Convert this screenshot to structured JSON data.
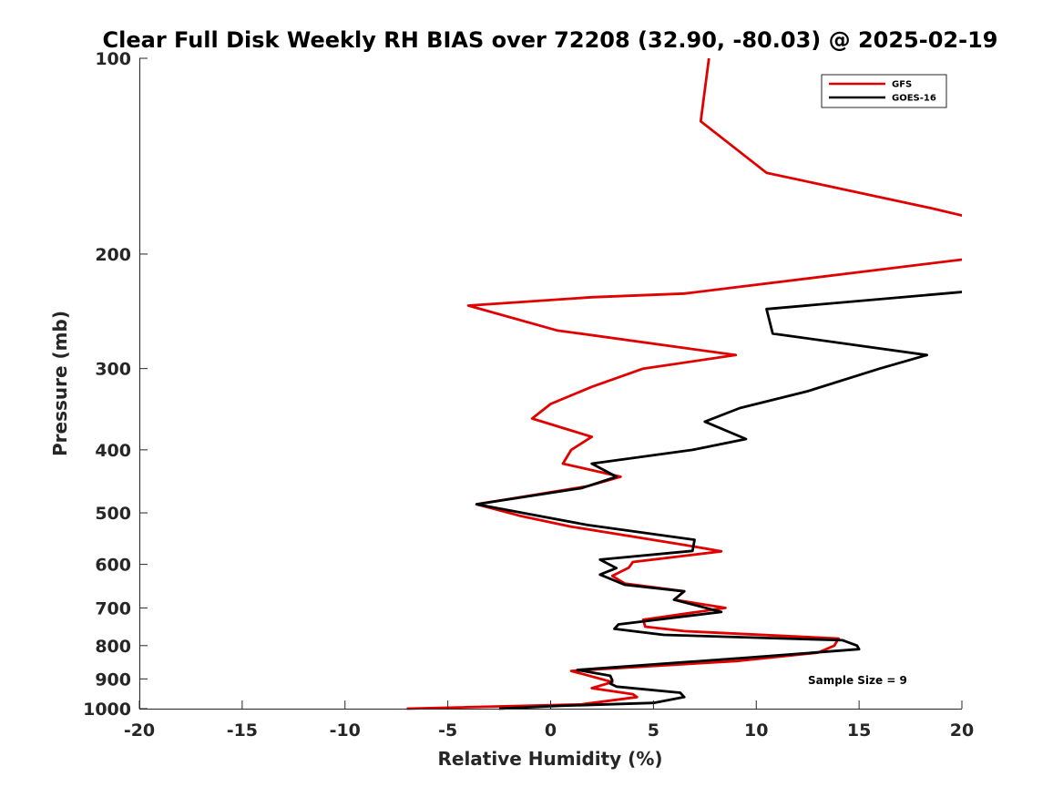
{
  "chart_data": {
    "type": "line",
    "title": "Clear Full Disk Weekly RH BIAS over 72208 (32.90, -80.03) @ 2025-02-19",
    "xlabel": "Relative Humidity (%)",
    "ylabel": "Pressure (mb)",
    "xlim": [
      -20,
      20
    ],
    "ylim": [
      100,
      1000
    ],
    "y_scale": "log",
    "y_reversed": true,
    "grid": false,
    "legend_position": "top-right",
    "x_ticks": [
      "-20",
      "-15",
      "-10",
      "-5",
      "0",
      "5",
      "10",
      "15",
      "20"
    ],
    "x_tick_values": [
      -20,
      -15,
      -10,
      -5,
      0,
      5,
      10,
      15,
      20
    ],
    "y_ticks": [
      "100",
      "200",
      "300",
      "400",
      "500",
      "600",
      "700",
      "800",
      "900",
      "1000"
    ],
    "y_tick_values": [
      100,
      200,
      300,
      400,
      500,
      600,
      700,
      800,
      900,
      1000
    ],
    "annotation": "Sample Size = 9",
    "series": [
      {
        "name": "GFS",
        "color": "#e00000",
        "points": [
          [
            7.7,
            100
          ],
          [
            7.3,
            125
          ],
          [
            10.5,
            150
          ],
          [
            18.5,
            170
          ],
          [
            20.5,
            176
          ],
          [
            20.5,
            203
          ],
          [
            6.5,
            230
          ],
          [
            2.0,
            233
          ],
          [
            -4.0,
            240
          ],
          [
            0.3,
            262
          ],
          [
            9.0,
            286
          ],
          [
            4.5,
            300
          ],
          [
            2.0,
            320
          ],
          [
            0,
            340
          ],
          [
            -0.9,
            358
          ],
          [
            2.0,
            382
          ],
          [
            1.0,
            400
          ],
          [
            0.6,
            420
          ],
          [
            3.4,
            440
          ],
          [
            1.8,
            455
          ],
          [
            -3.6,
            485
          ],
          [
            -1.5,
            505
          ],
          [
            1.0,
            525
          ],
          [
            6.5,
            560
          ],
          [
            8.3,
            573
          ],
          [
            4.0,
            595
          ],
          [
            3.8,
            607
          ],
          [
            3.0,
            625
          ],
          [
            3.6,
            642
          ],
          [
            6.5,
            660
          ],
          [
            6.0,
            680
          ],
          [
            8.5,
            700
          ],
          [
            4.5,
            730
          ],
          [
            4.6,
            748
          ],
          [
            6.5,
            760
          ],
          [
            14.0,
            780
          ],
          [
            13.8,
            800
          ],
          [
            13.0,
            820
          ],
          [
            9.0,
            845
          ],
          [
            1.0,
            875
          ],
          [
            3.0,
            910
          ],
          [
            2.0,
            930
          ],
          [
            4.0,
            950
          ],
          [
            4.2,
            960
          ],
          [
            1.5,
            985
          ],
          [
            -7.0,
            1000
          ]
        ]
      },
      {
        "name": "GOES-16",
        "color": "#000000",
        "points": [
          [
            20.5,
            228
          ],
          [
            10.5,
            243
          ],
          [
            10.8,
            265
          ],
          [
            18.3,
            286
          ],
          [
            16.0,
            300
          ],
          [
            12.5,
            325
          ],
          [
            9.2,
            345
          ],
          [
            7.5,
            362
          ],
          [
            9.5,
            385
          ],
          [
            6.9,
            400
          ],
          [
            2.0,
            420
          ],
          [
            3.2,
            440
          ],
          [
            1.5,
            458
          ],
          [
            -3.6,
            485
          ],
          [
            1.8,
            522
          ],
          [
            7.0,
            550
          ],
          [
            6.9,
            572
          ],
          [
            2.4,
            590
          ],
          [
            3.2,
            608
          ],
          [
            2.4,
            622
          ],
          [
            3.6,
            645
          ],
          [
            6.5,
            660
          ],
          [
            6.0,
            680
          ],
          [
            8.3,
            710
          ],
          [
            3.3,
            742
          ],
          [
            3.1,
            754
          ],
          [
            5.5,
            770
          ],
          [
            14.2,
            785
          ],
          [
            14.9,
            800
          ],
          [
            15.0,
            810
          ],
          [
            9.5,
            835
          ],
          [
            1.3,
            872
          ],
          [
            2.9,
            890
          ],
          [
            3.0,
            905
          ],
          [
            2.9,
            915
          ],
          [
            3.2,
            925
          ],
          [
            6.3,
            945
          ],
          [
            6.5,
            960
          ],
          [
            5.0,
            980
          ],
          [
            0.5,
            990
          ],
          [
            -2.5,
            1000
          ]
        ]
      }
    ]
  }
}
